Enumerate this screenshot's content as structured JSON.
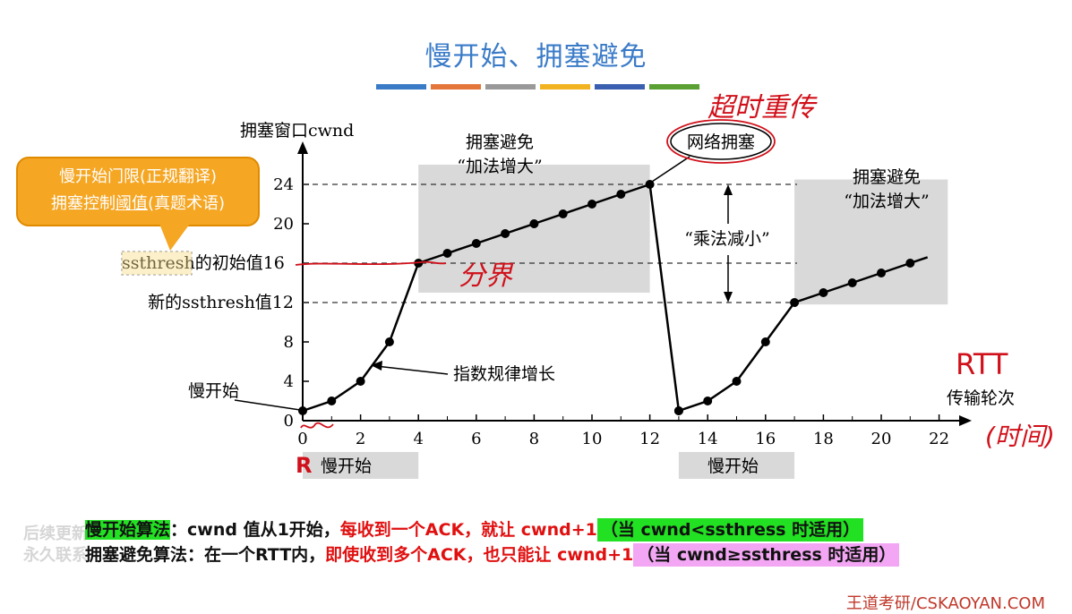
{
  "title": "慢开始、拥塞避免",
  "title_bar_colors": [
    "#3a7bc8",
    "#e4763a",
    "#999999",
    "#f2b320",
    "#3a5fb0",
    "#5aa032"
  ],
  "callout": {
    "line1": "慢开始门限(正规翻译)",
    "line2_a": "拥塞控制",
    "line2_b": "阈值",
    "line2_c": "(真题术语)"
  },
  "labels": {
    "ylabel": "拥塞窗口cwnd",
    "xlabel": "传输轮次",
    "ssthresh_initial_term": "ssthresh",
    "ssthresh_initial_rest": "的初始值16",
    "ssthresh_new": "新的ssthresh值12",
    "slow_start_left": "慢开始",
    "slow_start_bottom1": "慢开始",
    "slow_start_bottom2": "慢开始",
    "exponential": "指数规律增长",
    "ca1_line1": "拥塞避免",
    "ca1_line2": "“加法增大”",
    "ca2_line1": "拥塞避免",
    "ca2_line2": "“加法增大”",
    "congestion": "网络拥塞",
    "multiplicative": "“乘法减小”"
  },
  "handwriting": {
    "timeout": "超时重传",
    "boundary": "分界",
    "rtt": "RTT",
    "time": "(时间)",
    "r_mark": "R"
  },
  "bottom": {
    "line1_a": "慢开始算法",
    "line1_b": "：cwnd 值从1开始，",
    "line1_c": "每收到一个ACK，就让 cwnd+1",
    "line1_d": "（当 cwnd<ssthress 时适用）",
    "line2_a": "拥塞避免算法",
    "line2_b": "：在一个RTT内，",
    "line2_c": "即使收到多个ACK，也只能让 cwnd+1",
    "line2_d": "（当 cwnd≥ssthress 时适用）"
  },
  "watermark_overlay": {
    "line1": "后续更新",
    "line2": "永久联系"
  },
  "footer": "王道考研/CSKAOYAN.COM",
  "chart_data": {
    "type": "line",
    "xlabel": "传输轮次",
    "ylabel": "拥塞窗口cwnd",
    "x_ticks": [
      0,
      2,
      4,
      6,
      8,
      10,
      12,
      14,
      16,
      18,
      20,
      22
    ],
    "y_ticks": [
      0,
      4,
      8,
      12,
      16,
      20,
      24
    ],
    "xlim": [
      0,
      22
    ],
    "ylim": [
      0,
      26
    ],
    "series": [
      {
        "x": [
          0,
          1,
          2,
          3,
          4,
          5,
          6,
          7,
          8,
          9,
          10,
          11,
          12
        ],
        "y": [
          1,
          2,
          4,
          8,
          16,
          17,
          18,
          19,
          20,
          21,
          22,
          23,
          24
        ]
      },
      {
        "x": [
          12,
          13
        ],
        "y": [
          24,
          1
        ]
      },
      {
        "x": [
          13,
          14,
          15,
          16,
          17,
          18,
          19,
          20,
          21
        ],
        "y": [
          1,
          2,
          4,
          8,
          12,
          13,
          14,
          15,
          16
        ]
      }
    ],
    "end_extension": {
      "x": 21.6,
      "y": 16.6
    },
    "reference_lines_y": [
      24,
      16,
      12
    ],
    "shaded_regions": [
      {
        "x": [
          4,
          12
        ],
        "y": [
          13,
          26
        ]
      },
      {
        "x": [
          17,
          22.3
        ],
        "y": [
          11.8,
          24.5
        ]
      }
    ]
  }
}
